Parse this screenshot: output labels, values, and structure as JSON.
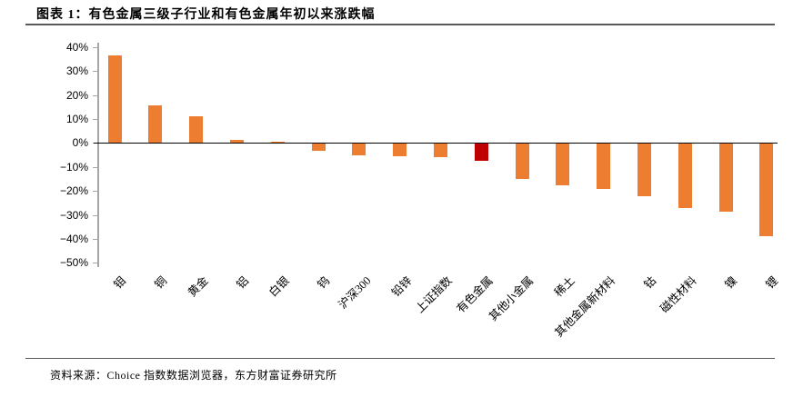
{
  "title": "图表 1：有色金属三级子行业和有色金属年初以来涨跌幅",
  "footer": {
    "source_text": "资料来源：Choice 指数数据浏览器，东方财富证券研究所"
  },
  "colors": {
    "bar": "#ED7D31",
    "highlight": "#C00000",
    "axis": "#A6A6A6",
    "zero_line": "#000000",
    "divider": "#595959"
  },
  "chart_data": {
    "type": "bar",
    "title": "有色金属三级子行业和有色金属年初以来涨跌幅",
    "categories": [
      "钼",
      "铜",
      "黄金",
      "铝",
      "白银",
      "钨",
      "沪深300",
      "铅锌",
      "上证指数",
      "有色金属",
      "其他小金属",
      "稀土",
      "其他金属新材料",
      "钴",
      "磁性材料",
      "镍",
      "锂"
    ],
    "values": [
      36.5,
      15.8,
      11.2,
      1.1,
      0.6,
      -2.9,
      -4.9,
      -5.3,
      -5.6,
      -7.1,
      -14.5,
      -17.4,
      -18.9,
      -22.0,
      -26.6,
      -28.4,
      -38.6
    ],
    "unit": "%",
    "highlight_category": "有色金属",
    "xlabel": "",
    "ylabel": "",
    "ylim": [
      -50,
      40
    ],
    "ytick_values": [
      40,
      30,
      20,
      10,
      0,
      -10,
      -20,
      -30,
      -40,
      -50
    ],
    "ytick_labels": [
      "40%",
      "30%",
      "20%",
      "10%",
      "0%",
      "−10%",
      "−20%",
      "−30%",
      "−40%",
      "−50%"
    ],
    "grid": false,
    "legend": "none"
  }
}
